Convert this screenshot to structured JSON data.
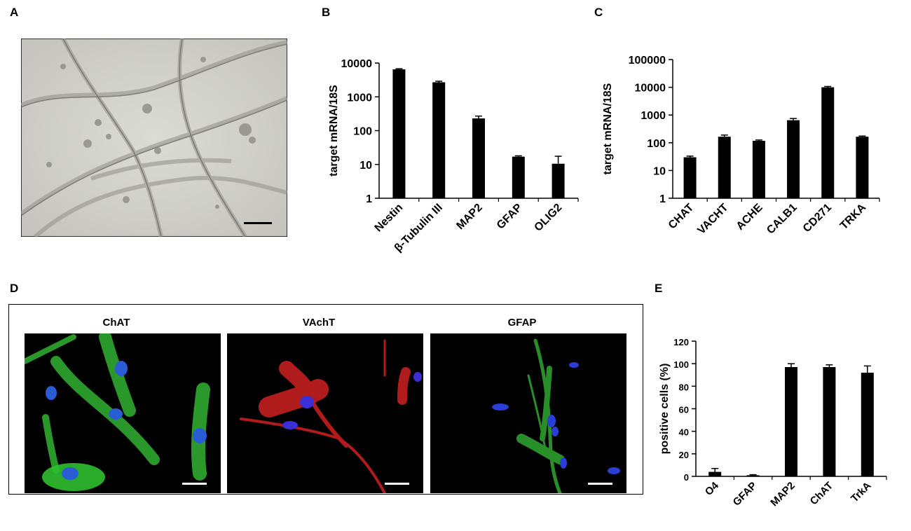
{
  "panels": {
    "a": "A",
    "b": "B",
    "c": "C",
    "d": "D",
    "e": "E"
  },
  "fluorescence": [
    {
      "label": "ChAT",
      "stain": "green",
      "color": "#2fc22f"
    },
    {
      "label": "VAchT",
      "stain": "red",
      "color": "#d42020"
    },
    {
      "label": "GFAP",
      "stain": "green",
      "color": "#2fc22f"
    }
  ],
  "chart_data": [
    {
      "panel": "B",
      "type": "bar",
      "scale": "log",
      "ylabel": "target mRNA/18S",
      "yticks": [
        "1",
        "10",
        "100",
        "1000",
        "10000"
      ],
      "ylim": [
        1,
        10000
      ],
      "categories": [
        "Nestin",
        "β-Tubulin III",
        "MAP2",
        "GFAP",
        "OLIG2"
      ],
      "values": [
        6500,
        2700,
        230,
        17,
        10.5
      ],
      "errors": [
        300,
        200,
        40,
        1,
        7
      ]
    },
    {
      "panel": "C",
      "type": "bar",
      "scale": "log",
      "ylabel": "target mRNA/18S",
      "yticks": [
        "1",
        "10",
        "100",
        "1000",
        "10000",
        "100000"
      ],
      "ylim": [
        1,
        100000
      ],
      "categories": [
        "CHAT",
        "VACHT",
        "ACHE",
        "CALB1",
        "CD271",
        "TRKA"
      ],
      "values": [
        30,
        165,
        118,
        650,
        10000,
        165
      ],
      "errors": [
        3,
        25,
        8,
        100,
        700,
        10
      ]
    },
    {
      "panel": "E",
      "type": "bar",
      "scale": "linear",
      "ylabel": "positive cells (%)",
      "yticks": [
        "0",
        "20",
        "40",
        "60",
        "80",
        "100",
        "120"
      ],
      "ylim": [
        0,
        120
      ],
      "categories": [
        "O4",
        "GFAP",
        "MAP2",
        "ChAT",
        "TrkA"
      ],
      "values": [
        4,
        1,
        97,
        97,
        92
      ],
      "errors": [
        3,
        0.5,
        3,
        2,
        6
      ]
    }
  ]
}
